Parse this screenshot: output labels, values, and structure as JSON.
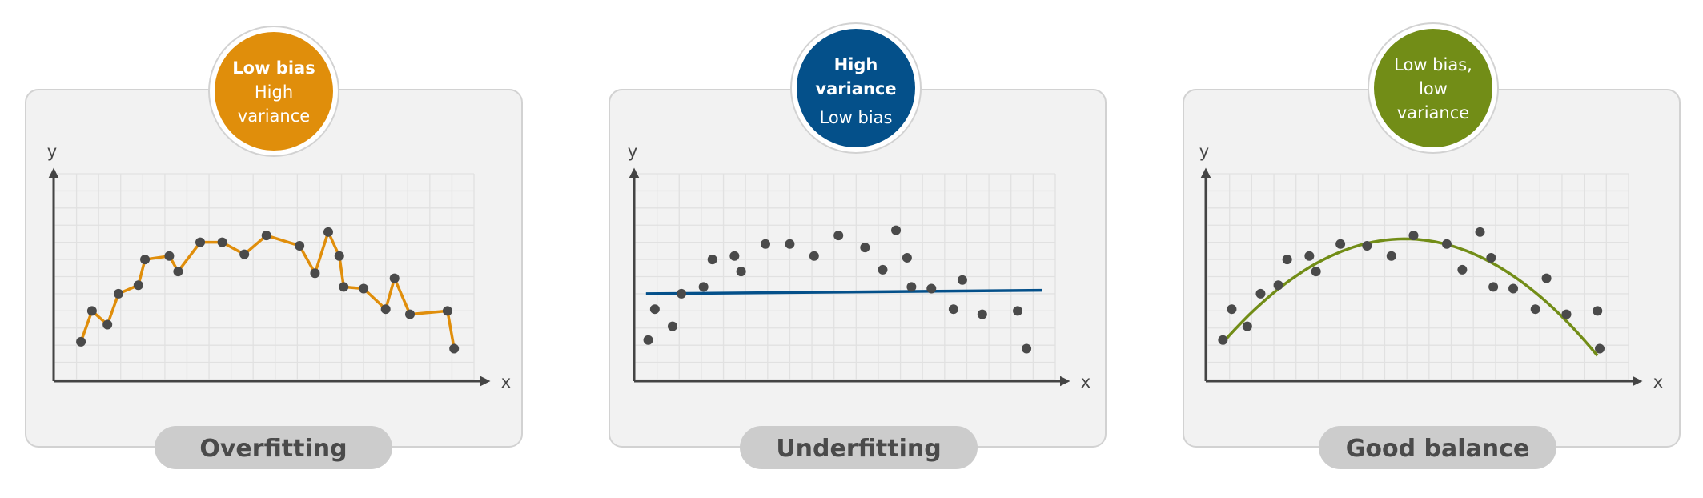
{
  "chart_data": [
    {
      "type": "line",
      "title": "Overfitting",
      "badge_lines": [
        {
          "text": "Low bias",
          "weight": "bold"
        },
        {
          "text": "High",
          "weight": "normal"
        },
        {
          "text": "variance",
          "weight": "normal"
        }
      ],
      "accent": "#e08e0b",
      "xlabel": "x",
      "ylabel": "y",
      "fit": "connect-points",
      "points": [
        [
          1.2,
          2.2
        ],
        [
          1.7,
          4.0
        ],
        [
          2.4,
          3.2
        ],
        [
          2.9,
          5.0
        ],
        [
          3.8,
          5.5
        ],
        [
          4.1,
          7.0
        ],
        [
          5.2,
          7.2
        ],
        [
          5.6,
          6.3
        ],
        [
          6.6,
          8.0
        ],
        [
          7.6,
          8.0
        ],
        [
          8.6,
          7.3
        ],
        [
          9.6,
          8.4
        ],
        [
          11.1,
          7.8
        ],
        [
          11.8,
          6.2
        ],
        [
          12.4,
          8.6
        ],
        [
          12.9,
          7.2
        ],
        [
          13.1,
          5.4
        ],
        [
          14.0,
          5.3
        ],
        [
          15.0,
          4.1
        ],
        [
          15.4,
          5.9
        ],
        [
          16.1,
          3.8
        ],
        [
          17.8,
          4.0
        ],
        [
          18.1,
          1.8
        ]
      ],
      "xlim": [
        0,
        19
      ],
      "ylim": [
        0,
        12
      ]
    },
    {
      "type": "scatter",
      "title": "Underfitting",
      "badge_lines": [
        {
          "text": "High",
          "weight": "bold"
        },
        {
          "text": "variance",
          "weight": "bold"
        },
        {
          "text": "Low bias",
          "weight": "normal"
        }
      ],
      "accent": "#04508a",
      "xlabel": "x",
      "ylabel": "y",
      "fit": "linear",
      "fit_line": [
        [
          0.5,
          5.0
        ],
        [
          18.4,
          5.2
        ]
      ],
      "points": [
        [
          0.6,
          2.3
        ],
        [
          0.9,
          4.1
        ],
        [
          1.7,
          3.1
        ],
        [
          2.1,
          5.0
        ],
        [
          3.1,
          5.4
        ],
        [
          3.5,
          7.0
        ],
        [
          4.5,
          7.2
        ],
        [
          4.8,
          6.3
        ],
        [
          5.9,
          7.9
        ],
        [
          7.0,
          7.9
        ],
        [
          8.1,
          7.2
        ],
        [
          9.2,
          8.4
        ],
        [
          10.4,
          7.7
        ],
        [
          11.2,
          6.4
        ],
        [
          11.8,
          8.7
        ],
        [
          12.3,
          7.1
        ],
        [
          12.5,
          5.4
        ],
        [
          13.4,
          5.3
        ],
        [
          14.4,
          4.1
        ],
        [
          14.8,
          5.8
        ],
        [
          15.7,
          3.8
        ],
        [
          17.3,
          4.0
        ],
        [
          17.7,
          1.8
        ]
      ],
      "xlim": [
        0,
        19
      ],
      "ylim": [
        0,
        12
      ]
    },
    {
      "type": "scatter",
      "title": "Good balance",
      "badge_lines": [
        {
          "text": "Low bias,",
          "weight": "normal"
        },
        {
          "text": "low",
          "weight": "normal"
        },
        {
          "text": "variance",
          "weight": "normal"
        }
      ],
      "accent": "#728d17",
      "xlabel": "x",
      "ylabel": "y",
      "fit": "quadratic",
      "fit_curve": {
        "x_start": 0.7,
        "x_end": 17.6,
        "vertex_x": 8.9,
        "vertex_y": 8.2,
        "a": -0.09
      },
      "points": [
        [
          0.7,
          2.3
        ],
        [
          1.1,
          4.1
        ],
        [
          1.8,
          3.1
        ],
        [
          2.4,
          5.0
        ],
        [
          3.2,
          5.5
        ],
        [
          3.6,
          7.0
        ],
        [
          4.6,
          7.2
        ],
        [
          4.9,
          6.3
        ],
        [
          6.0,
          7.9
        ],
        [
          7.2,
          7.8
        ],
        [
          8.3,
          7.2
        ],
        [
          9.3,
          8.4
        ],
        [
          10.8,
          7.9
        ],
        [
          11.5,
          6.4
        ],
        [
          12.3,
          8.6
        ],
        [
          12.8,
          7.1
        ],
        [
          12.9,
          5.4
        ],
        [
          13.8,
          5.3
        ],
        [
          14.8,
          4.1
        ],
        [
          15.3,
          5.9
        ],
        [
          16.2,
          3.8
        ],
        [
          17.6,
          4.0
        ],
        [
          17.7,
          1.8
        ]
      ],
      "xlim": [
        0,
        19
      ],
      "ylim": [
        0,
        12
      ]
    }
  ]
}
